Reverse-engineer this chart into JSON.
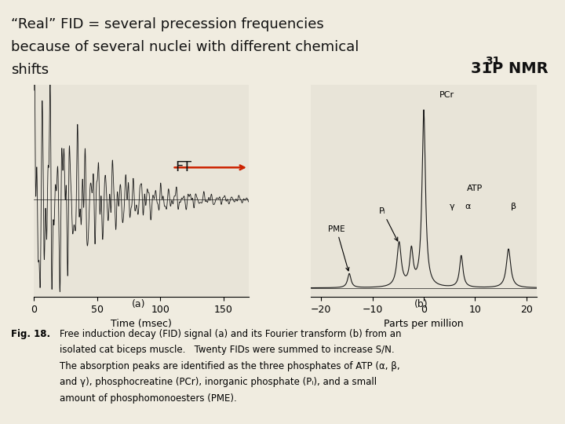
{
  "title_line1": "“Real” FID = several precession frequencies",
  "title_line2": "because of several nuclei with different chemical",
  "title_line3": "shifts",
  "nmr_label": "31P NMR",
  "ft_label": "FT",
  "fig_caption": "Fig. 18.   Free induction decay (FID) signal (a) and its Fourier transform (b) from an\n           isolated cat biceps muscle.   Twenty FIDs were summed to increase S/N.\n           The absorption peaks are identified as the three phosphates of ATP (α, β,\n           and γ), phosphocreatine (PCr), inorganic phosphate (Pᵢ), and a small\n           amount of phosphomonoesters (PME).",
  "panel_a_xlabel": "Time (msec)",
  "panel_a_xticks": [
    0,
    50,
    100,
    150
  ],
  "panel_b_xlabel": "Parts per million",
  "panel_b_xticks": [
    -20,
    -10,
    0,
    10,
    20
  ],
  "panel_a_label": "(a)",
  "panel_b_label": "(b)",
  "background_color": "#f0ece0",
  "plot_bg": "#e8e4d8",
  "line_color": "#1a1a1a",
  "arrow_color": "#cc2200"
}
